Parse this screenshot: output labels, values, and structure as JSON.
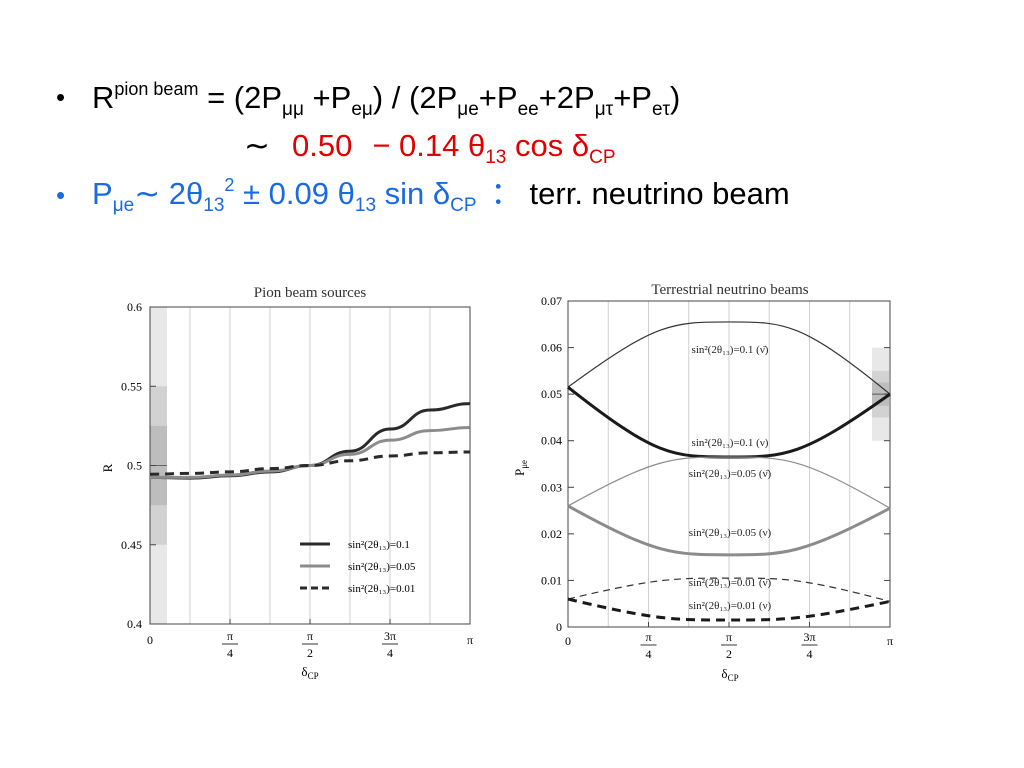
{
  "slide": {
    "line1": {
      "R": "R",
      "sup": "pion beam",
      "eq": " = (2P",
      "s1": "μμ",
      "t2": " +P",
      "s2": "eμ",
      "t3": ") / (2P",
      "s3": "μe",
      "t4": "+P",
      "s4": "ee",
      "t5": "+2P",
      "s5": "μτ",
      "t6": "+P",
      "s6": "eτ",
      "t7": ")"
    },
    "line2": {
      "tilde": "∼",
      "red_a": "0.50",
      "red_b": "− 0.14 θ",
      "red_sub1": "13",
      "red_c": " cos δ",
      "red_sub2": "CP"
    },
    "line3": {
      "a": "P",
      "a_sub": "μe",
      "b": "∼ 2θ",
      "b_sub": "13",
      "b_sup": "2",
      "c": " ± 0.09 θ",
      "c_sub": "13",
      "d": " sin δ",
      "d_sub": "CP",
      "colon": "：",
      "tail": "terr. neutrino beam"
    }
  },
  "colors": {
    "red": "#e00000",
    "blue": "#1a6ae0"
  },
  "chart_data": [
    {
      "type": "line",
      "title": "Pion beam sources",
      "xlabel": "δCP",
      "ylabel": "R",
      "xlim": [
        0,
        3.14159
      ],
      "ylim": [
        0.4,
        0.6
      ],
      "x_ticks": [
        "0",
        "π/4",
        "π/2",
        "3π/4",
        "π"
      ],
      "y_ticks": [
        "0.4",
        "0.45",
        "0.5",
        "0.55",
        "0.6"
      ],
      "grid": true,
      "legend_position": "bottom-right",
      "series": [
        {
          "name": "sin²(2θ₁₃)=0.1",
          "style": "thick-solid",
          "color": "#2a2a2a",
          "x": [
            0,
            0.39,
            0.79,
            1.18,
            1.57,
            1.96,
            2.36,
            2.75,
            3.14
          ],
          "values": [
            0.4925,
            0.492,
            0.4935,
            0.496,
            0.5,
            0.509,
            0.523,
            0.535,
            0.539
          ]
        },
        {
          "name": "sin²(2θ₁₃)=0.05",
          "style": "thick-solid",
          "color": "#8c8c8c",
          "x": [
            0,
            0.39,
            0.79,
            1.18,
            1.57,
            1.96,
            2.36,
            2.75,
            3.14
          ],
          "values": [
            0.4925,
            0.4925,
            0.494,
            0.4965,
            0.5,
            0.507,
            0.516,
            0.522,
            0.524
          ]
        },
        {
          "name": "sin²(2θ₁₃)=0.01",
          "style": "thick-dashed",
          "color": "#2a2a2a",
          "x": [
            0,
            0.39,
            0.79,
            1.18,
            1.57,
            1.96,
            2.36,
            2.75,
            3.14
          ],
          "values": [
            0.4945,
            0.495,
            0.496,
            0.498,
            0.5,
            0.503,
            0.506,
            0.508,
            0.5085
          ]
        }
      ],
      "shaded_band": [
        {
          "range": [
            0.4,
            0.6
          ],
          "shade": "#e8e8e8"
        },
        {
          "range": [
            0.45,
            0.55
          ],
          "shade": "#d2d2d2"
        },
        {
          "range": [
            0.475,
            0.525
          ],
          "shade": "#bdbdbd"
        }
      ]
    },
    {
      "type": "line",
      "title": "Terrestrial neutrino beams",
      "xlabel": "δCP",
      "ylabel": "Pμe",
      "xlim": [
        0,
        3.14159
      ],
      "ylim": [
        0,
        0.07
      ],
      "x_ticks": [
        "0",
        "π/4",
        "π/2",
        "3π/4",
        "π"
      ],
      "y_ticks": [
        "0",
        "0.01",
        "0.02",
        "0.03",
        "0.04",
        "0.05",
        "0.06",
        "0.07"
      ],
      "grid": true,
      "series": [
        {
          "name": "sin²(2θ₁₃)=0.1 (ν̄)",
          "style": "thin-solid",
          "color": "#333",
          "x0": 0.0515,
          "mid": 0.0655,
          "x1": 0.05
        },
        {
          "name": "sin²(2θ₁₃)=0.1 (ν)",
          "style": "thick-solid",
          "color": "#1a1a1a",
          "x0": 0.0515,
          "mid": 0.0365,
          "x1": 0.05
        },
        {
          "name": "sin²(2θ₁₃)=0.05 (ν̄)",
          "style": "thin-solid",
          "color": "#8c8c8c",
          "x0": 0.026,
          "mid": 0.0365,
          "x1": 0.0255
        },
        {
          "name": "sin²(2θ₁₃)=0.05 (ν)",
          "style": "thick-solid",
          "color": "#8c8c8c",
          "x0": 0.026,
          "mid": 0.0155,
          "x1": 0.0255
        },
        {
          "name": "sin²(2θ₁₃)=0.01 (ν̄)",
          "style": "thin-dashed",
          "color": "#333",
          "x0": 0.006,
          "mid": 0.0105,
          "x1": 0.0055
        },
        {
          "name": "sin²(2θ₁₃)=0.01 (ν)",
          "style": "thick-dashed",
          "color": "#1a1a1a",
          "x0": 0.006,
          "mid": 0.0015,
          "x1": 0.0055
        }
      ],
      "shaded_band": [
        {
          "range": [
            0.04,
            0.06
          ],
          "shade": "#e8e8e8"
        },
        {
          "range": [
            0.045,
            0.055
          ],
          "shade": "#d2d2d2"
        },
        {
          "range": [
            0.0475,
            0.0525
          ],
          "shade": "#bdbdbd"
        }
      ]
    }
  ]
}
